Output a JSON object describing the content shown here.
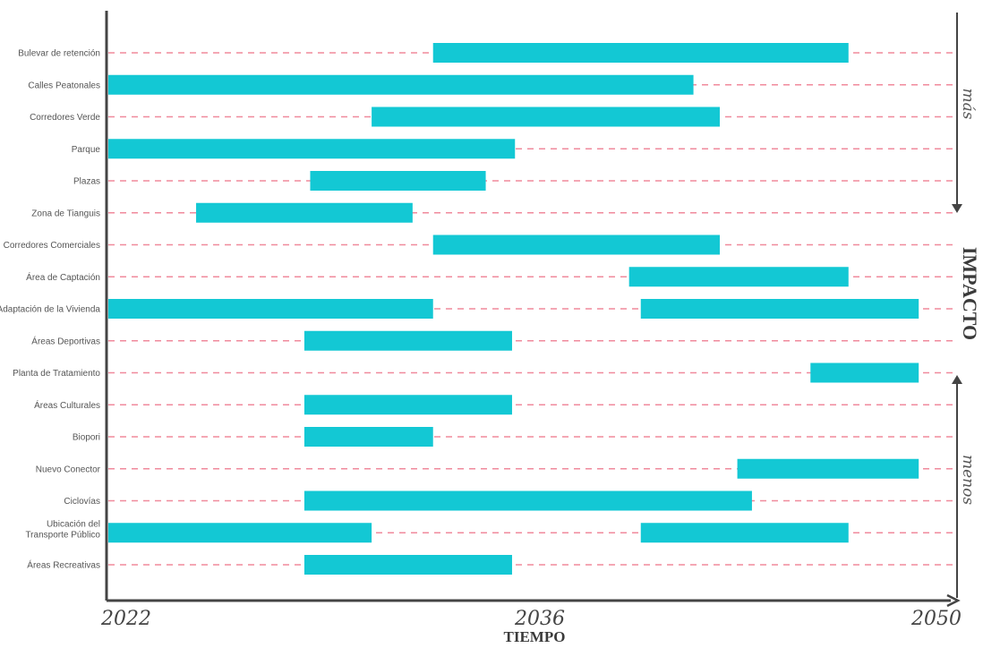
{
  "chart_data": {
    "type": "gantt",
    "xlabel": "TIEMPO",
    "x_ticks": [
      "2022",
      "2036",
      "2050"
    ],
    "xlim": [
      2022,
      2050
    ],
    "grid": true,
    "impact_axis": {
      "title": "IMPACTO",
      "top_label": "más",
      "bottom_label": "menos"
    },
    "colors": {
      "bar": "#13c8d4",
      "gridline": "#f08a9c",
      "axis": "#444444"
    },
    "rows": [
      {
        "label": "Bulevar de retención",
        "segments": [
          [
            2033.1,
            2047.3
          ]
        ]
      },
      {
        "label": "Calles Peatonales",
        "segments": [
          [
            2022,
            2042.0
          ]
        ]
      },
      {
        "label": "Corredores Verde",
        "segments": [
          [
            2031.0,
            2042.9
          ]
        ]
      },
      {
        "label": "Parque",
        "segments": [
          [
            2022,
            2035.9
          ]
        ]
      },
      {
        "label": "Plazas",
        "segments": [
          [
            2028.9,
            2034.9
          ]
        ]
      },
      {
        "label": "Zona de Tianguis",
        "segments": [
          [
            2025.0,
            2032.4
          ]
        ]
      },
      {
        "label": "Corredores Comerciales",
        "segments": [
          [
            2033.1,
            2042.9
          ]
        ]
      },
      {
        "label": "Área de Captación",
        "segments": [
          [
            2039.8,
            2047.3
          ]
        ]
      },
      {
        "label": "Adaptación de la Vivienda",
        "segments": [
          [
            2022,
            2033.1
          ],
          [
            2040.2,
            2049.7
          ]
        ]
      },
      {
        "label": "Áreas Deportivas",
        "segments": [
          [
            2028.7,
            2035.8
          ]
        ]
      },
      {
        "label": "Planta de Tratamiento",
        "segments": [
          [
            2046.0,
            2049.7
          ]
        ]
      },
      {
        "label": "Áreas Culturales",
        "segments": [
          [
            2028.7,
            2035.8
          ]
        ]
      },
      {
        "label": "Biopori",
        "segments": [
          [
            2028.7,
            2033.1
          ]
        ]
      },
      {
        "label": "Nuevo Conector",
        "segments": [
          [
            2043.5,
            2049.7
          ]
        ]
      },
      {
        "label": "Ciclovías",
        "segments": [
          [
            2028.7,
            2044.0
          ]
        ]
      },
      {
        "label": "Ubicación del Transporte Público",
        "label_lines": [
          "Ubicación del",
          "Transporte Público"
        ],
        "segments": [
          [
            2022,
            2031.0
          ],
          [
            2040.2,
            2047.3
          ]
        ]
      },
      {
        "label": "Áreas Recreativas",
        "segments": [
          [
            2028.7,
            2035.8
          ]
        ]
      }
    ]
  }
}
